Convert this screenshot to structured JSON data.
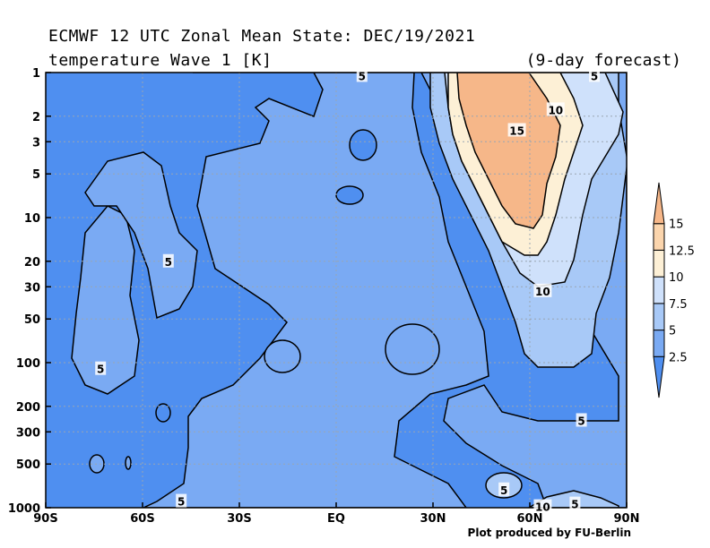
{
  "header": {
    "title_line1": "ECMWF 12 UTC Zonal Mean State: DEC/19/2021",
    "title_line2": "temperature Wave 1 [K]",
    "forecast": "(9-day forecast)"
  },
  "credit": "Plot produced by FU-Berlin",
  "chart_data": {
    "type": "contour",
    "xlabel": "",
    "ylabel": "",
    "x_ticks": [
      "90S",
      "60S",
      "30S",
      "EQ",
      "30N",
      "60N",
      "90N"
    ],
    "x_range": [
      -90,
      90
    ],
    "y_ticks": [
      1,
      2,
      3,
      5,
      10,
      20,
      30,
      50,
      100,
      200,
      300,
      500,
      1000
    ],
    "y_range": [
      1,
      1000
    ],
    "y_scale": "log-inverted",
    "grid": true,
    "contour_levels": [
      2.5,
      5,
      7.5,
      10,
      12.5,
      15
    ],
    "colorbar": {
      "ticks": [
        "2.5",
        "5",
        "7.5",
        "10",
        "12.5",
        "15"
      ],
      "colors": [
        "#4f8ff0",
        "#7aaaf3",
        "#a8c9f7",
        "#cfe1fb",
        "#fdf0d6",
        "#fbd5ad",
        "#f6b789"
      ],
      "placement": "right"
    },
    "contour_labels": [
      {
        "text": "5",
        "lat": -52,
        "p": 20
      },
      {
        "text": "5",
        "lat": -73,
        "p": 110
      },
      {
        "text": "5",
        "lat": -48,
        "p": 900
      },
      {
        "text": "5",
        "lat": 8,
        "p": 1.05
      },
      {
        "text": "15",
        "lat": 56,
        "p": 2.5
      },
      {
        "text": "10",
        "lat": 68,
        "p": 1.8
      },
      {
        "text": "5",
        "lat": 80,
        "p": 1.05
      },
      {
        "text": "10",
        "lat": 64,
        "p": 32
      },
      {
        "text": "5",
        "lat": 76,
        "p": 250
      },
      {
        "text": "5",
        "lat": 52,
        "p": 750
      },
      {
        "text": "10",
        "lat": 64,
        "p": 980
      },
      {
        "text": "5",
        "lat": 74,
        "p": 940
      }
    ],
    "max_value_region": {
      "lat": 58,
      "p": 5,
      "value_approx": 15.5
    }
  }
}
